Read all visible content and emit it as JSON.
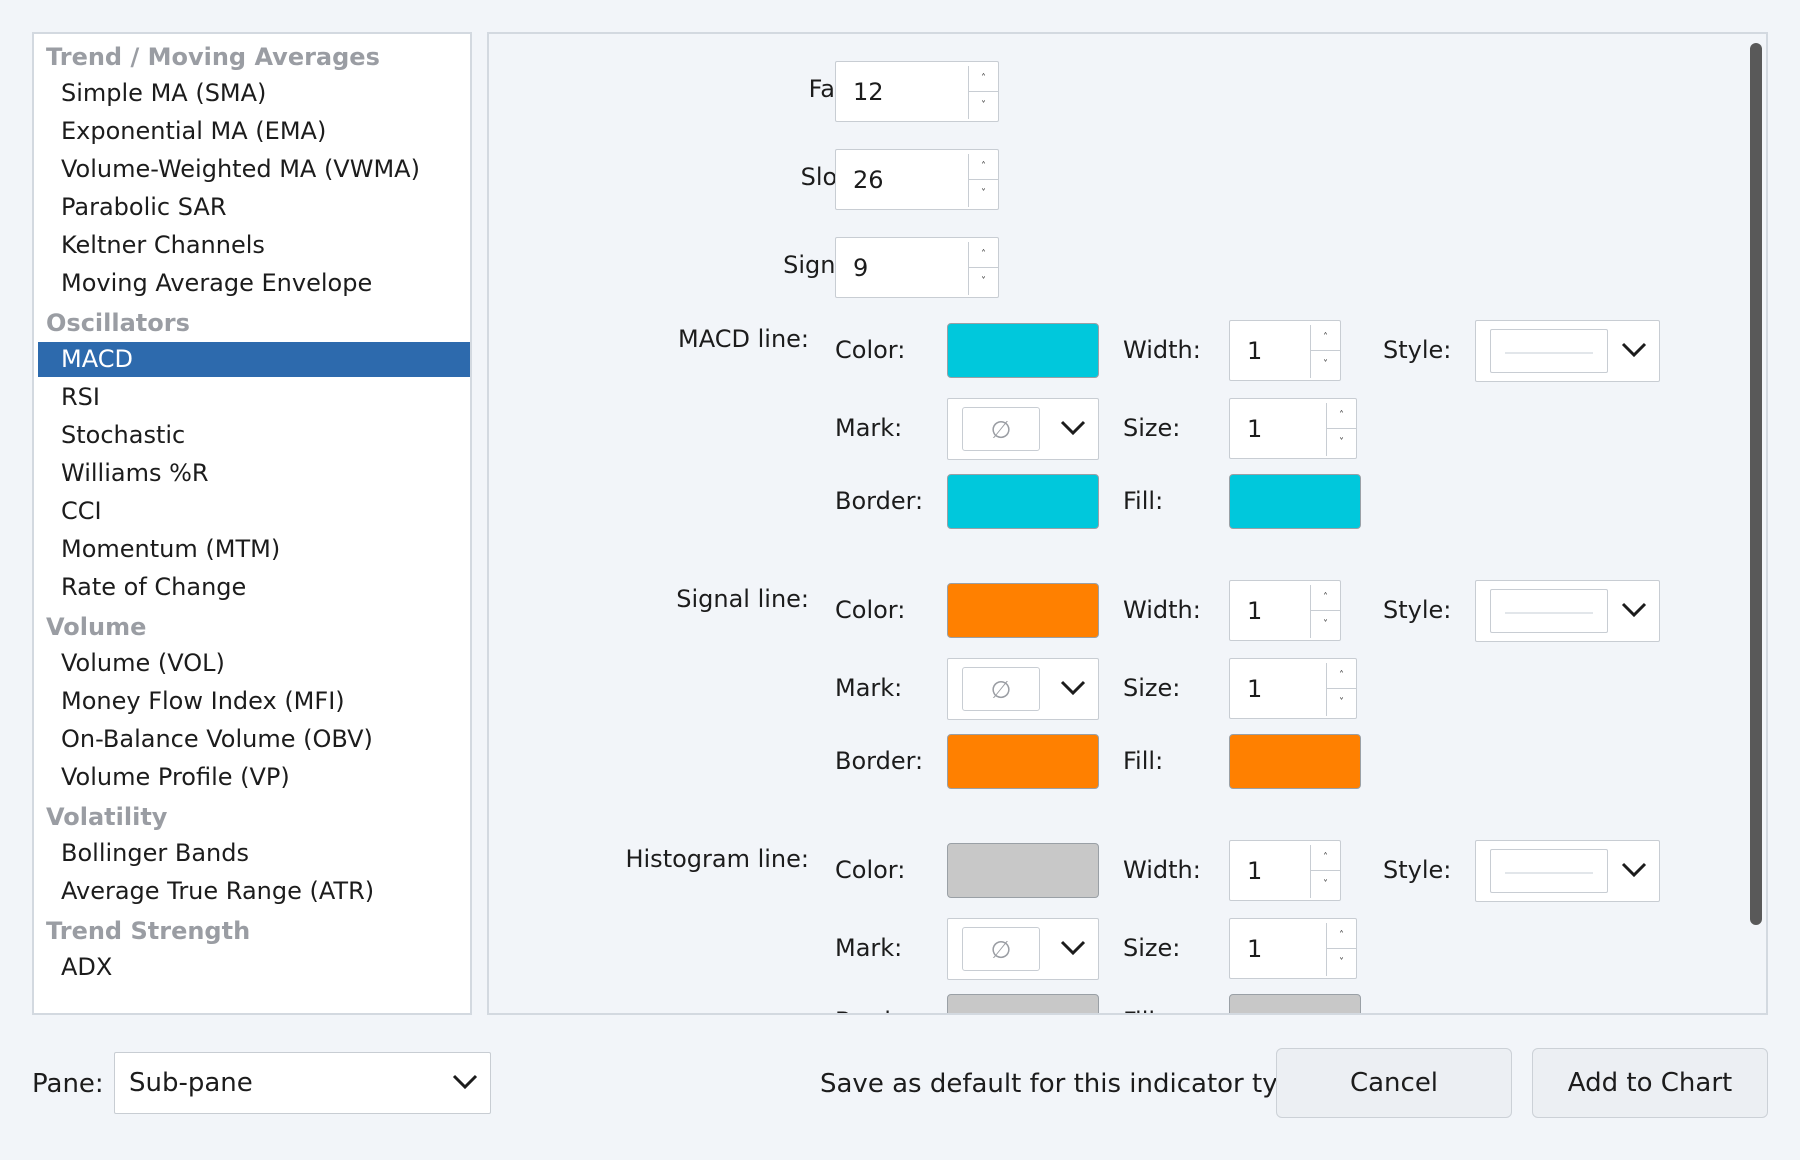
{
  "indicator_list": {
    "categories": [
      {
        "name": "Trend / Moving Averages",
        "items": [
          "Simple MA (SMA)",
          "Exponential MA (EMA)",
          "Volume-Weighted MA (VWMA)",
          "Parabolic SAR",
          "Keltner Channels",
          "Moving Average Envelope"
        ]
      },
      {
        "name": "Oscillators",
        "items": [
          "MACD",
          "RSI",
          "Stochastic",
          "Williams %R",
          "CCI",
          "Momentum (MTM)",
          "Rate of Change"
        ]
      },
      {
        "name": "Volume",
        "items": [
          "Volume (VOL)",
          "Money Flow Index (MFI)",
          "On-Balance Volume (OBV)",
          "Volume Profile (VP)"
        ]
      },
      {
        "name": "Volatility",
        "items": [
          "Bollinger Bands",
          "Average True Range (ATR)"
        ]
      },
      {
        "name": "Trend Strength",
        "items": [
          "ADX"
        ]
      }
    ],
    "selected": "MACD"
  },
  "params": {
    "fast": {
      "label": "Fast period:",
      "value": "12"
    },
    "slow": {
      "label": "Slow period:",
      "value": "26"
    },
    "signal": {
      "label": "Signal period:",
      "value": "9"
    }
  },
  "field_labels": {
    "color": "Color:",
    "width": "Width:",
    "style": "Style:",
    "mark": "Mark:",
    "size": "Size:",
    "border": "Border:",
    "fill": "Fill:"
  },
  "lines": [
    {
      "label": "MACD line:",
      "color": "#00c8dc",
      "width": "1",
      "size": "1",
      "border": "#00c8dc",
      "fill": "#00c8dc",
      "mark_icon": "no-mark-icon",
      "mark_symbol": "∅"
    },
    {
      "label": "Signal line:",
      "color": "#ff8000",
      "width": "1",
      "size": "1",
      "border": "#ff8000",
      "fill": "#ff8000",
      "mark_icon": "no-mark-icon",
      "mark_symbol": "∅"
    },
    {
      "label": "Histogram line:",
      "color": "#c8c8c8",
      "width": "1",
      "size": "1",
      "border": "#c8c8c8",
      "fill": "#c8c8c8",
      "mark_icon": "no-mark-icon",
      "mark_symbol": "∅"
    }
  ],
  "spin_arrows": {
    "up": "˄",
    "down": "˅"
  },
  "bottom": {
    "pane_label": "Pane:",
    "pane_value": "Sub-pane",
    "save_default": "Save as default for this indicator type",
    "cancel": "Cancel",
    "add_to_chart": "Add to Chart"
  },
  "colors": {
    "selection": "#2d6aad",
    "category_header": "#9a9da3"
  }
}
